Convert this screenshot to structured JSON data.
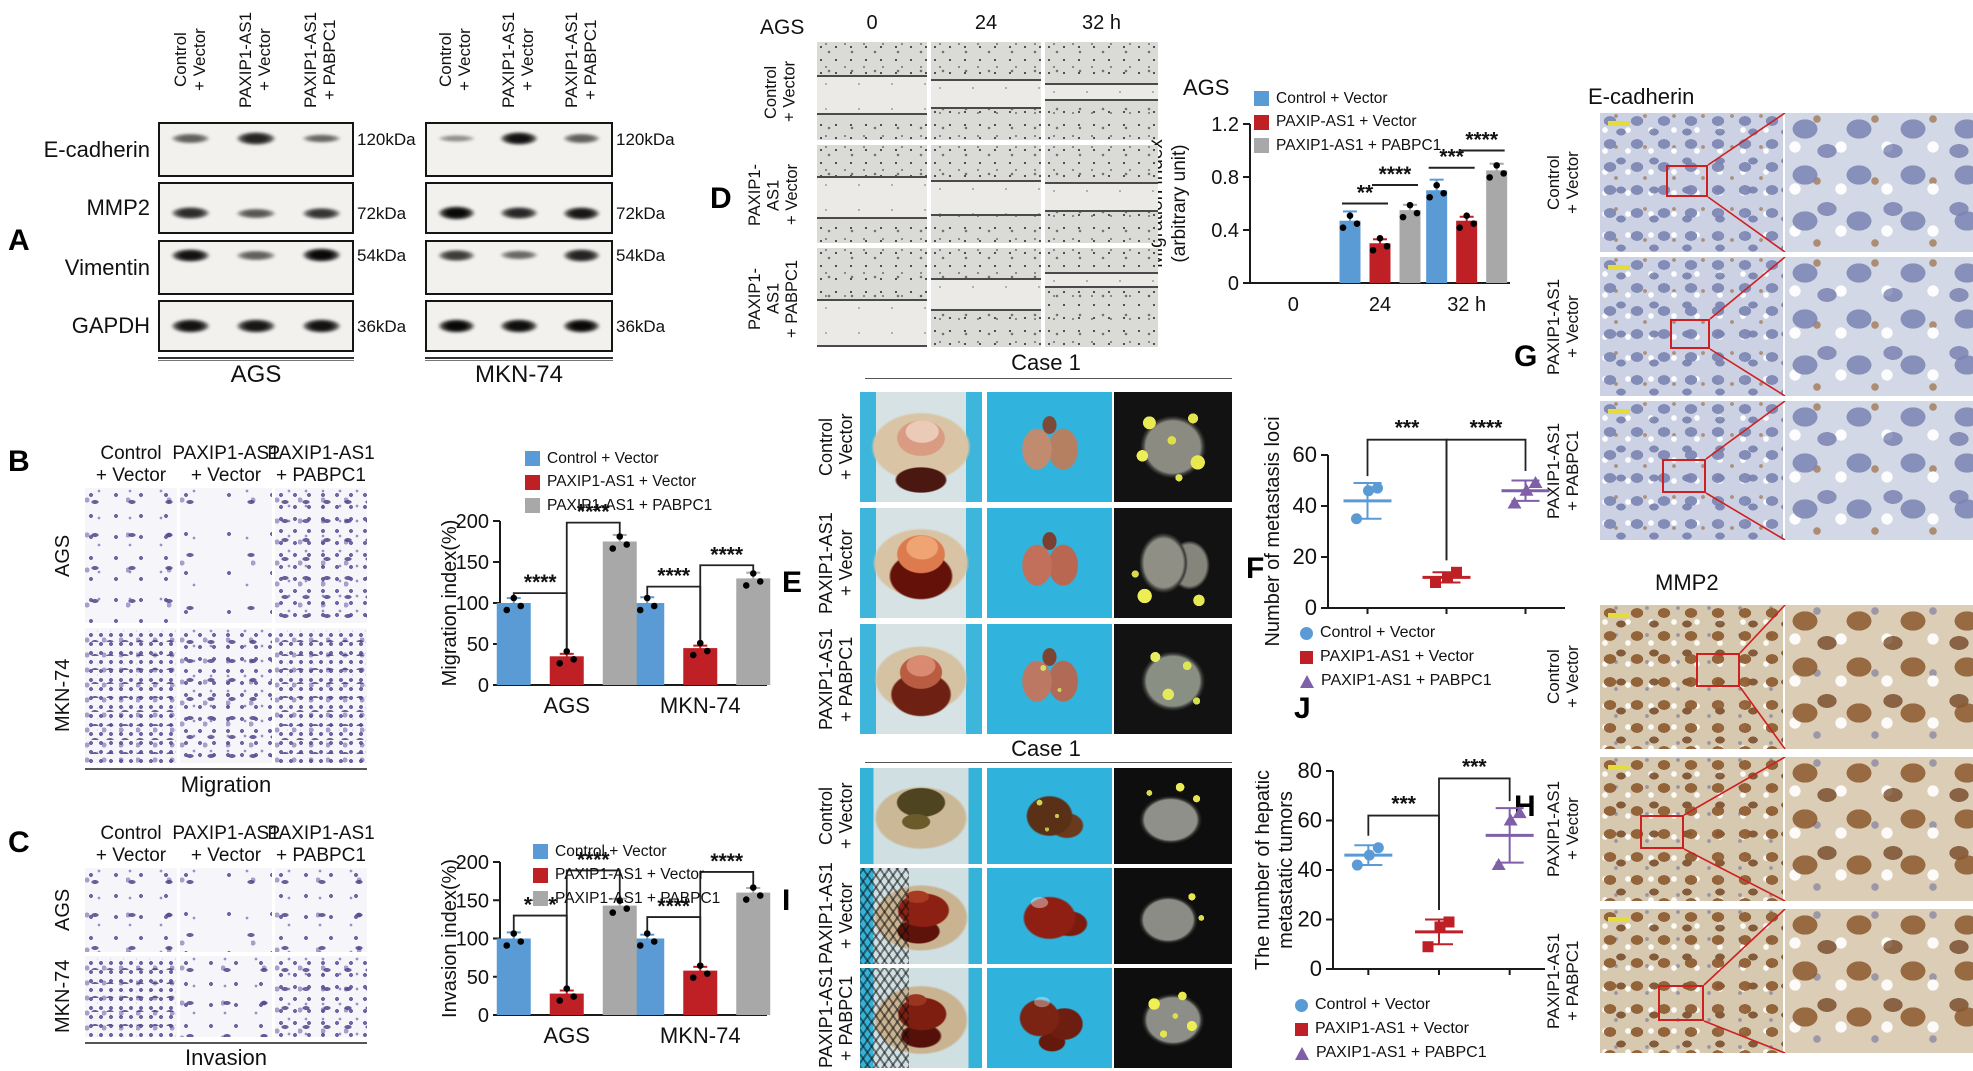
{
  "figure": {
    "colors": {
      "blue": "#5B9BD5",
      "red": "#BE2026",
      "gray": "#A8A8A8",
      "purple": "#7E5FA8"
    }
  },
  "panelA": {
    "label": "A",
    "lanes": [
      [
        "Control",
        "+ Vector"
      ],
      [
        "PAXIP1-AS1",
        "+ Vector"
      ],
      [
        "PAXIP1-AS1",
        "+ PABPC1"
      ]
    ],
    "proteins": [
      "E-cadherin",
      "MMP2",
      "Vimentin",
      "GAPDH"
    ],
    "sets": [
      {
        "cell_line": "AGS",
        "rows": [
          {
            "kda": "120kDa",
            "bands": [
              0.5,
              0.85,
              0.45
            ]
          },
          {
            "kda": "72kDa",
            "bands": [
              0.8,
              0.55,
              0.75
            ]
          },
          {
            "kda": "54kDa",
            "bands": [
              0.95,
              0.5,
              1.0
            ]
          },
          {
            "kda": "36kDa",
            "bands": [
              0.95,
              0.92,
              0.95
            ]
          }
        ]
      },
      {
        "cell_line": "MKN-74",
        "rows": [
          {
            "kda": "120kDa",
            "bands": [
              0.22,
              0.95,
              0.5
            ]
          },
          {
            "kda": "72kDa",
            "bands": [
              1.0,
              0.82,
              0.92
            ]
          },
          {
            "kda": "54kDa",
            "bands": [
              0.7,
              0.45,
              0.85
            ]
          },
          {
            "kda": "36kDa",
            "bands": [
              1.0,
              0.97,
              1.0
            ]
          }
        ]
      }
    ]
  },
  "panelB": {
    "label": "B",
    "col_headers": [
      [
        "Control",
        "+ Vector"
      ],
      [
        "PAXIP1-AS1",
        "+ Vector"
      ],
      [
        "PAXIP1-AS1",
        "+ PABPC1"
      ]
    ],
    "row_labels": [
      "AGS",
      "MKN-74"
    ],
    "caption": "Migration"
  },
  "panelC": {
    "label": "C",
    "col_headers": [
      [
        "Control",
        "+ Vector"
      ],
      [
        "PAXIP1-AS1",
        "+ Vector"
      ],
      [
        "PAXIP1-AS1",
        "+ PABPC1"
      ]
    ],
    "row_labels": [
      "AGS",
      "MKN-74"
    ],
    "caption": "Invasion"
  },
  "panelD": {
    "label": "D",
    "cell_line": "AGS",
    "time_headers": [
      "0",
      "24",
      "32 h"
    ],
    "row_labels": [
      [
        "Control",
        "+ Vector"
      ],
      [
        "PAXIP1-",
        "AS1",
        "+ Vector"
      ],
      [
        "PAXIP1-",
        "AS1",
        "+ PABPC1"
      ]
    ]
  },
  "panelE": {
    "label": "E",
    "case": "Case 1",
    "row_labels": [
      [
        "Control",
        "+ Vector"
      ],
      [
        "PAXIP1-AS1",
        "+ Vector"
      ],
      [
        "PAXIP1-AS1",
        "+ PABPC1"
      ]
    ]
  },
  "panelF": {
    "label": "F"
  },
  "panelG": {
    "label": "G",
    "title": "E-cadherin",
    "row_labels": [
      [
        "Control",
        "+ Vector"
      ],
      [
        "PAXIP1-AS1",
        "+ Vector"
      ],
      [
        "PAXIP1-AS1",
        "+ PABPC1"
      ]
    ]
  },
  "panelH": {
    "label": "H",
    "title": "MMP2",
    "row_labels": [
      [
        "Control",
        "+ Vector"
      ],
      [
        "PAXIP1-AS1",
        "+ Vector"
      ],
      [
        "PAXIP1-AS1",
        "+ PABPC1"
      ]
    ]
  },
  "panelI": {
    "label": "I",
    "case": "Case 1",
    "row_labels": [
      [
        "Control",
        "+ Vector"
      ],
      [
        "PAXIP1-AS1",
        "+ Vector"
      ],
      [
        "PAXIP1-AS1",
        "+ PABPC1"
      ]
    ]
  },
  "panelJ": {
    "label": "J"
  },
  "chart_data": {
    "migration_bar": {
      "type": "bar",
      "title": "",
      "ylabel": "Migration index(%)",
      "categories": [
        "AGS",
        "MKN-74"
      ],
      "series": [
        {
          "name": "Control + Vector",
          "color": "#5B9BD5",
          "values": [
            100,
            100
          ]
        },
        {
          "name": "PAXIP1-AS1 + Vector",
          "color": "#BE2026",
          "values": [
            35,
            45
          ]
        },
        {
          "name": "PAXIP1-AS1 + PABPC1",
          "color": "#A8A8A8",
          "values": [
            175,
            130
          ]
        }
      ],
      "err": [
        [
          6,
          7
        ],
        [
          3,
          3
        ],
        [
          8,
          7
        ]
      ],
      "ylim": [
        0,
        200
      ],
      "yticks": [
        0,
        50,
        100,
        150,
        200
      ],
      "sig": [
        {
          "cat": 0,
          "a": 0,
          "b": 1,
          "y": 112,
          "label": "****"
        },
        {
          "cat": 0,
          "a": 1,
          "b": 2,
          "y": 198,
          "label": "****"
        },
        {
          "cat": 1,
          "a": 0,
          "b": 1,
          "y": 120,
          "label": "****"
        },
        {
          "cat": 1,
          "a": 1,
          "b": 2,
          "y": 146,
          "label": "****"
        }
      ]
    },
    "invasion_bar": {
      "type": "bar",
      "title": "",
      "ylabel": "Invasion index(%)",
      "categories": [
        "AGS",
        "MKN-74"
      ],
      "series": [
        {
          "name": "Control + Vector",
          "color": "#5B9BD5",
          "values": [
            100,
            100
          ]
        },
        {
          "name": "PAXIP1-AS1 + Vector",
          "color": "#BE2026",
          "values": [
            28,
            58
          ]
        },
        {
          "name": "PAXIP1-AS1 + PABPC1",
          "color": "#A8A8A8",
          "values": [
            143,
            160
          ]
        }
      ],
      "err": [
        [
          8,
          5
        ],
        [
          4,
          5
        ],
        [
          9,
          6
        ]
      ],
      "ylim": [
        0,
        200
      ],
      "yticks": [
        0,
        50,
        100,
        150,
        200
      ],
      "sig": [
        {
          "cat": 0,
          "a": 0,
          "b": 1,
          "y": 130,
          "label": "****"
        },
        {
          "cat": 0,
          "a": 1,
          "b": 2,
          "y": 189,
          "label": "****"
        },
        {
          "cat": 1,
          "a": 0,
          "b": 1,
          "y": 128,
          "label": "****"
        },
        {
          "cat": 1,
          "a": 1,
          "b": 2,
          "y": 187,
          "label": "****"
        }
      ]
    },
    "wound_bar": {
      "type": "bar",
      "title": "AGS",
      "ylabel": [
        "Migration index",
        "(arbitrary unit)"
      ],
      "categories": [
        "0",
        "24",
        "32 h"
      ],
      "series": [
        {
          "name": "Control + Vector",
          "color": "#5B9BD5",
          "values": [
            0,
            0.47,
            0.7
          ]
        },
        {
          "name": "PAXIP-AS1 + Vector",
          "color": "#BE2026",
          "values": [
            0,
            0.3,
            0.47
          ]
        },
        {
          "name": "PAXIP1-AS1 + PABPC1",
          "color": "#A8A8A8",
          "values": [
            0,
            0.55,
            0.85
          ]
        }
      ],
      "err": [
        [
          0,
          0.07,
          0.08
        ],
        [
          0,
          0.03,
          0.03
        ],
        [
          0,
          0.04,
          0.05
        ]
      ],
      "ylim": [
        0,
        1.2
      ],
      "yticks": [
        0,
        0.4,
        0.8,
        1.2
      ],
      "sig": [
        {
          "cat": 1,
          "a": 0,
          "b": 1,
          "y": 0.6,
          "label": "**",
          "style": "line"
        },
        {
          "cat": 1,
          "a": 1,
          "b": 2,
          "y": 0.74,
          "label": "****",
          "style": "line"
        },
        {
          "cat": 2,
          "a": 0,
          "b": 1,
          "y": 0.87,
          "label": "***",
          "style": "line"
        },
        {
          "cat": 2,
          "a": 1,
          "b": 2,
          "y": 1.0,
          "label": "****",
          "style": "line"
        }
      ]
    },
    "metastasis_scatter": {
      "type": "scatter",
      "ylabel": "Number of metastasis loci",
      "ylim": [
        0,
        60
      ],
      "yticks": [
        0,
        20,
        40,
        60
      ],
      "groups": [
        {
          "name": "Control + Vector",
          "marker": "circle",
          "color": "#5B9BD5",
          "points": [
            35,
            46,
            47
          ],
          "mean": 42,
          "sd": 7
        },
        {
          "name": "PAXIP1-AS1 + Vector",
          "marker": "square",
          "color": "#BE2026",
          "points": [
            10,
            12,
            14
          ],
          "mean": 12,
          "sd": 2
        },
        {
          "name": "PAXIP1-AS1 + PABPC1",
          "marker": "triangle",
          "color": "#7E5FA8",
          "points": [
            41,
            46,
            49
          ],
          "mean": 46,
          "sd": 4
        }
      ],
      "sig": [
        {
          "a": 0,
          "b": 1,
          "y": 66,
          "label": "***"
        },
        {
          "a": 1,
          "b": 2,
          "y": 66,
          "label": "****"
        }
      ]
    },
    "hepatic_scatter": {
      "type": "scatter",
      "ylabel": [
        "The number of hepatic",
        "metastatic tumors"
      ],
      "ylim": [
        0,
        80
      ],
      "yticks": [
        0,
        20,
        40,
        60,
        80
      ],
      "groups": [
        {
          "name": "Control + Vector",
          "marker": "circle",
          "color": "#5B9BD5",
          "points": [
            42,
            46,
            49
          ],
          "mean": 46,
          "sd": 4
        },
        {
          "name": "PAXIP1-AS1 + Vector",
          "marker": "square",
          "color": "#BE2026",
          "points": [
            9,
            17,
            19
          ],
          "mean": 15,
          "sd": 5
        },
        {
          "name": "PAXIP1-AS1 + PABPC1",
          "marker": "triangle",
          "color": "#7E5FA8",
          "points": [
            42,
            60,
            63
          ],
          "mean": 54,
          "sd": 11
        }
      ],
      "sig": [
        {
          "a": 0,
          "b": 1,
          "y": 62,
          "label": "***"
        },
        {
          "a": 1,
          "b": 2,
          "y": 77,
          "label": "***"
        }
      ]
    }
  }
}
